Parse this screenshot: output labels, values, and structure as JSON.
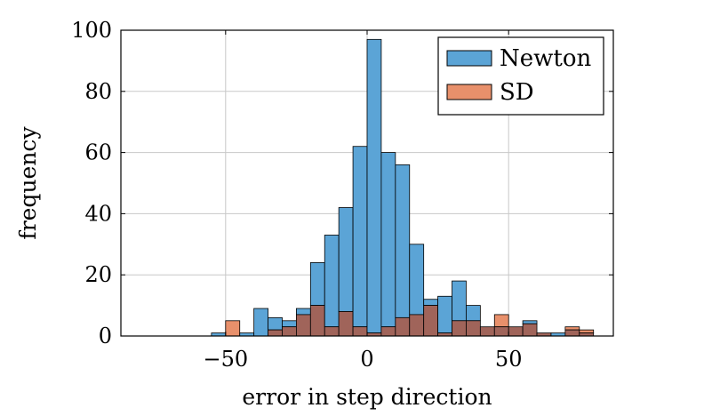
{
  "chart_data": {
    "type": "bar",
    "title": "",
    "xlabel": "error in step direction",
    "ylabel": "frequency",
    "xlim": [
      -87,
      87
    ],
    "ylim": [
      0,
      100
    ],
    "xticks": [
      -50,
      0,
      50
    ],
    "xtick_labels": [
      "−50",
      "0",
      "50"
    ],
    "yticks": [
      0,
      20,
      40,
      60,
      80,
      100
    ],
    "ytick_labels": [
      "0",
      "20",
      "40",
      "60",
      "80",
      "100"
    ],
    "grid": true,
    "legend_position": "top-right",
    "bin_width": 5,
    "bin_starts": [
      -55,
      -50,
      -45,
      -40,
      -35,
      -30,
      -25,
      -20,
      -15,
      -10,
      -5,
      0,
      5,
      10,
      15,
      20,
      25,
      30,
      35,
      40,
      45,
      50,
      55,
      60,
      65,
      70,
      75
    ],
    "series": [
      {
        "name": "Newton",
        "color": "#5ba4d6",
        "values": [
          1,
          0,
          1,
          9,
          6,
          5,
          9,
          24,
          33,
          42,
          62,
          97,
          60,
          56,
          30,
          12,
          13,
          18,
          10,
          3,
          3,
          3,
          5,
          1,
          1,
          2,
          1
        ]
      },
      {
        "name": "SD",
        "color": "#e8906b",
        "values": [
          0,
          5,
          0,
          0,
          2,
          3,
          7,
          10,
          3,
          8,
          3,
          1,
          3,
          6,
          7,
          10,
          1,
          5,
          5,
          3,
          7,
          3,
          4,
          1,
          0,
          3,
          2
        ]
      }
    ],
    "overlap_color": "#a0645a"
  }
}
